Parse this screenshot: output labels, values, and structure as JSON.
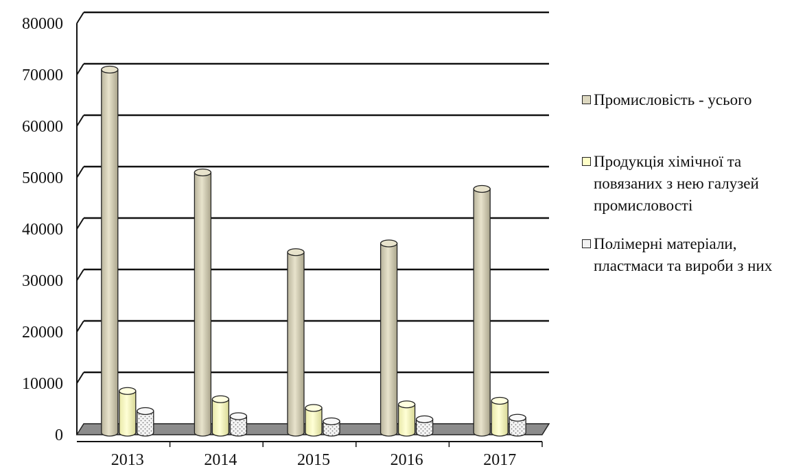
{
  "chart_data": {
    "type": "bar",
    "categories": [
      "2013",
      "2014",
      "2015",
      "2016",
      "2017"
    ],
    "series": [
      {
        "name": "Промисловість - усього",
        "values": [
          71000,
          51000,
          35500,
          37200,
          47800
        ],
        "color": "#ddd8c0"
      },
      {
        "name": "Продукція хімічної та повязаних з нею галузей промисловості",
        "values": [
          8500,
          6900,
          5200,
          5900,
          6600
        ],
        "color": "#ffffc8"
      },
      {
        "name": "Полімерні матеріали, пластмаси та вироби з них",
        "values": [
          4600,
          3600,
          2600,
          3000,
          3300
        ],
        "color": "#eeeeee"
      }
    ],
    "ylim": [
      0,
      80000
    ],
    "yticks": [
      "0",
      "10000",
      "20000",
      "30000",
      "40000",
      "50000",
      "60000",
      "70000",
      "80000"
    ],
    "grid": true,
    "legend_position": "right",
    "style": "3d-cylinder"
  }
}
